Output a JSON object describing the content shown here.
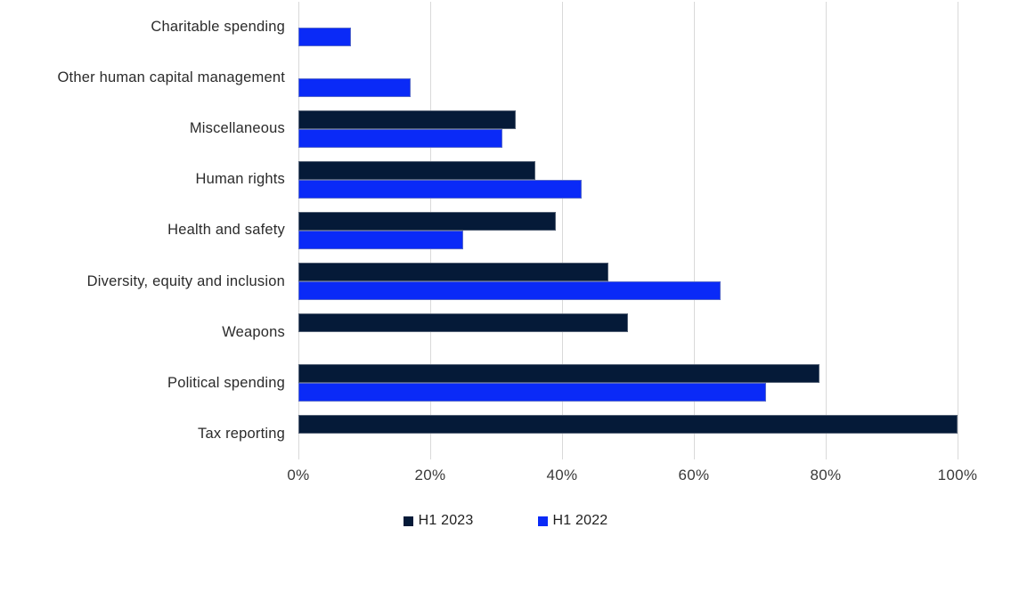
{
  "chart_data": {
    "type": "bar",
    "orientation": "horizontal",
    "title": "",
    "xlabel": "",
    "ylabel": "",
    "xlim": [
      0,
      100
    ],
    "x_ticks": [
      "0%",
      "20%",
      "40%",
      "60%",
      "80%",
      "100%"
    ],
    "x_tick_values": [
      0,
      20,
      40,
      60,
      80,
      100
    ],
    "grid": "vertical",
    "legend_position": "bottom",
    "categories": [
      "Charitable spending",
      "Other human capital management",
      "Miscellaneous",
      "Human rights",
      "Health and safety",
      "Diversity, equity and inclusion",
      "Weapons",
      "Political spending",
      "Tax reporting"
    ],
    "series": [
      {
        "name": "H1 2023",
        "color": "#051a38",
        "values": [
          null,
          null,
          33,
          36,
          39,
          47,
          50,
          79,
          100
        ]
      },
      {
        "name": "H1 2022",
        "color": "#0a2af7",
        "values": [
          8,
          17,
          31,
          43,
          25,
          64,
          null,
          71,
          null
        ]
      }
    ],
    "colors": {
      "gridline": "#d9d9d9",
      "category_label_text": "#2b2b2b",
      "axis_tick_text": "#3a3a3a",
      "legend_text": "#1f1f1f",
      "background": "#ffffff"
    }
  }
}
